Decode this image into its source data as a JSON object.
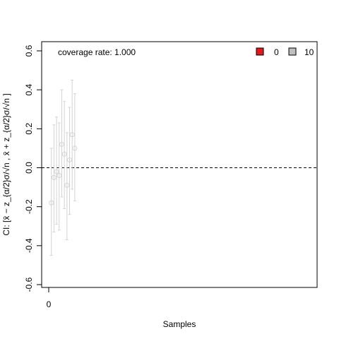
{
  "chart_data": {
    "type": "scatter",
    "title": "",
    "xlabel": "Samples",
    "ylabel": "CI: [x̄ − z_{α/2}σ/√n , x̄ + z_{α/2}σ/√n ]",
    "xlim": [
      0,
      100
    ],
    "ylim": [
      -0.6,
      0.6
    ],
    "x_ticks": [
      0
    ],
    "y_ticks": [
      -0.6,
      -0.4,
      -0.2,
      0.0,
      0.2,
      0.4,
      0.6
    ],
    "y_tick_labels": [
      "-0.6",
      "-0.4",
      "-0.2",
      "0.0",
      "0.2",
      "0.4",
      "0.6"
    ],
    "x_tick_labels": [
      "0"
    ],
    "reference_line": {
      "y": 0.0,
      "style": "dashed"
    },
    "annotation": "coverage rate: 1.000",
    "legend": {
      "placement": "top-right",
      "entries": [
        {
          "label": "0",
          "color": "#e31a1c"
        },
        {
          "label": "10",
          "color": "#bebebe"
        }
      ]
    },
    "series": [
      {
        "points": [
          {
            "x": 1,
            "mean": -0.18,
            "lower": -0.45,
            "upper": 0.1
          },
          {
            "x": 2,
            "mean": -0.05,
            "lower": -0.33,
            "upper": 0.22
          },
          {
            "x": 3,
            "mean": -0.02,
            "lower": -0.29,
            "upper": 0.26
          },
          {
            "x": 4,
            "mean": -0.04,
            "lower": -0.32,
            "upper": 0.23
          },
          {
            "x": 5,
            "mean": 0.12,
            "lower": -0.15,
            "upper": 0.4
          },
          {
            "x": 6,
            "mean": 0.07,
            "lower": -0.21,
            "upper": 0.34
          },
          {
            "x": 7,
            "mean": -0.09,
            "lower": -0.37,
            "upper": 0.18
          },
          {
            "x": 8,
            "mean": 0.04,
            "lower": -0.24,
            "upper": 0.31
          },
          {
            "x": 9,
            "mean": 0.17,
            "lower": -0.11,
            "upper": 0.45
          },
          {
            "x": 10,
            "mean": 0.1,
            "lower": -0.17,
            "upper": 0.38
          }
        ]
      }
    ]
  }
}
